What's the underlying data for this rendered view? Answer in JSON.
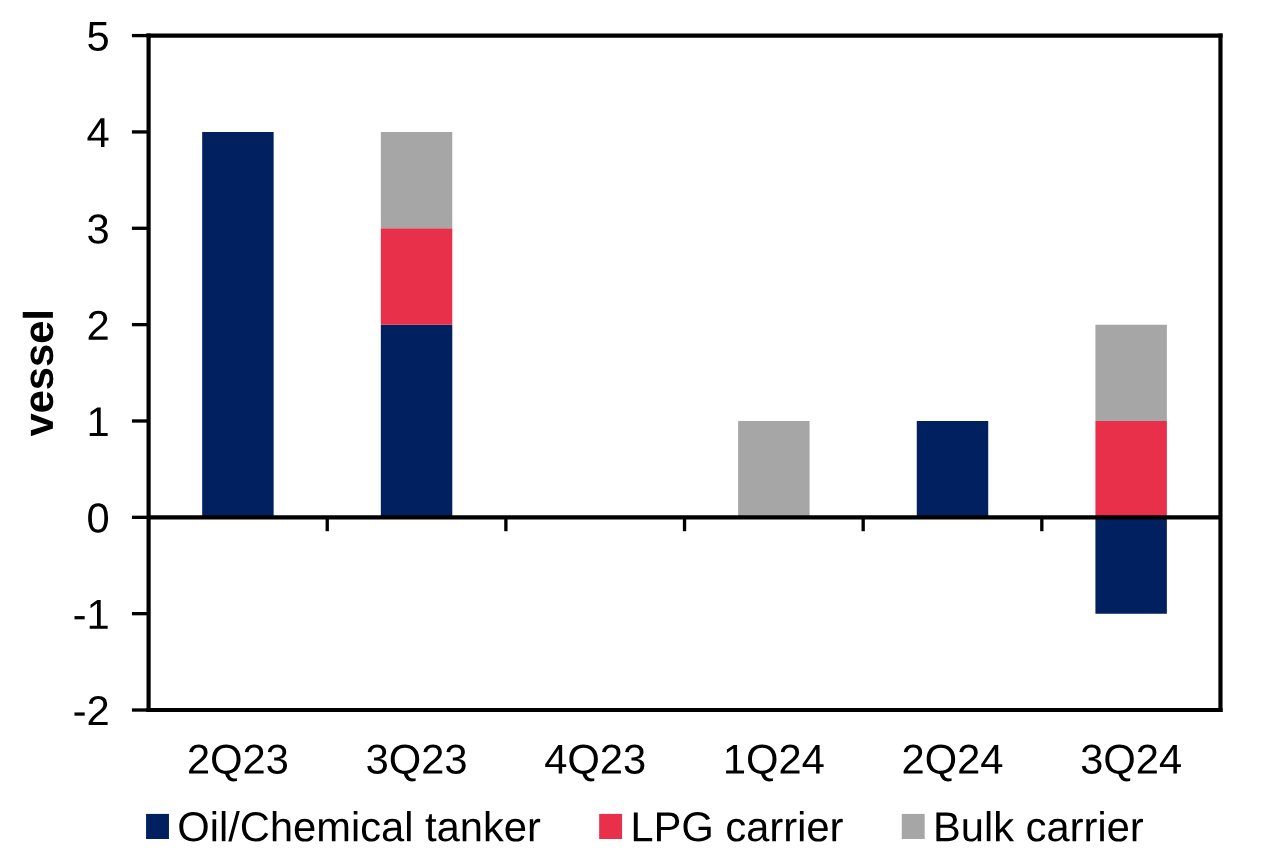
{
  "chart_data": {
    "type": "bar",
    "stacked": true,
    "ylabel": "vessel",
    "categories": [
      "2Q23",
      "3Q23",
      "4Q23",
      "1Q24",
      "2Q24",
      "3Q24"
    ],
    "series": [
      {
        "name": "Oil/Chemical tanker",
        "color": "#002060",
        "values": [
          4,
          2,
          0,
          0,
          1,
          -1
        ]
      },
      {
        "name": "LPG carrier",
        "color": "#e8304a",
        "values": [
          0,
          1,
          0,
          0,
          0,
          1
        ]
      },
      {
        "name": "Bulk carrier",
        "color": "#a6a6a6",
        "values": [
          0,
          1,
          0,
          1,
          0,
          1
        ]
      }
    ],
    "ref_lines": [
      {
        "axis": "y",
        "value": 0,
        "color": "#000000",
        "line_style": "solid"
      }
    ],
    "ylim": [
      -2,
      5
    ],
    "yticks": [
      -2,
      -1,
      0,
      1,
      2,
      3,
      4,
      5
    ],
    "legend": "bottom"
  }
}
